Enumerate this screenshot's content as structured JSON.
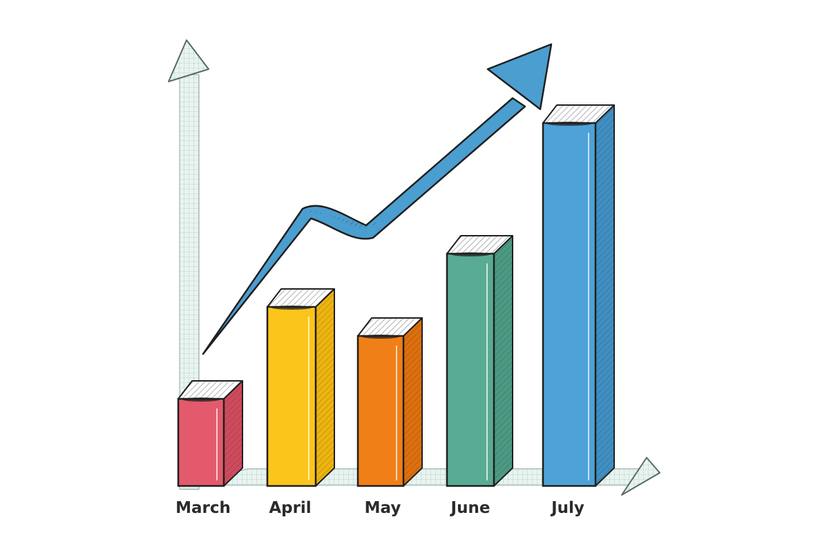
{
  "chart_data": {
    "type": "bar",
    "categories": [
      "March",
      "April",
      "May",
      "June",
      "July"
    ],
    "values": [
      18,
      37,
      31,
      48,
      75
    ],
    "ylim": [
      0,
      85
    ],
    "grid": false,
    "trend_arrow": "increasing",
    "colors": [
      "#e35a6c",
      "#fcc51c",
      "#f07f17",
      "#5aab94",
      "#4ea2d7"
    ],
    "side_colors": [
      "#cf4a5d",
      "#eeb40f",
      "#de6f0d",
      "#4b9a83",
      "#3f8fc3"
    ],
    "accent": "#4b9ed0",
    "axis_color": "#e7f1ee"
  }
}
